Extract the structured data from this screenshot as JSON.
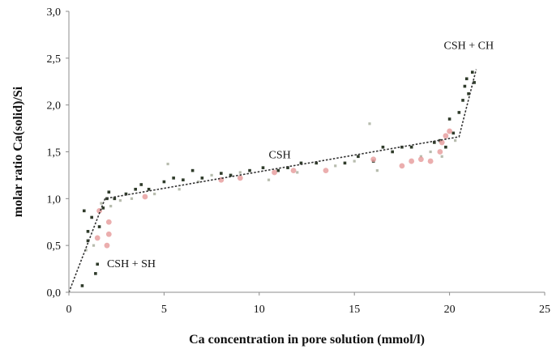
{
  "chart_data": {
    "type": "scatter",
    "title": "",
    "xlabel": "Ca concentration in pore solution (mmol/l)",
    "ylabel": "molar ratio Ca(solid)/Si",
    "xlim": [
      0,
      25
    ],
    "ylim": [
      0,
      3
    ],
    "x_ticks": [
      "0",
      "5",
      "10",
      "15",
      "20",
      "25"
    ],
    "y_ticks": [
      "0,0",
      "0,5",
      "1,0",
      "1,5",
      "2,0",
      "2,5",
      "3,0"
    ],
    "grid": false,
    "annotations": [
      {
        "text": "CSH + SH",
        "x": 2.0,
        "y": 0.27
      },
      {
        "text": "CSH",
        "x": 10.5,
        "y": 1.43
      },
      {
        "text": "CSH + CH",
        "x": 19.7,
        "y": 2.6
      }
    ],
    "fit_line": {
      "x": [
        0.0,
        1.9,
        20.5,
        21.4
      ],
      "y": [
        0.0,
        1.0,
        1.66,
        2.38
      ]
    },
    "series": [
      {
        "marker": "dark-square",
        "color": "#2f3b2a",
        "points": [
          [
            0.7,
            0.07
          ],
          [
            0.8,
            0.87
          ],
          [
            1.0,
            0.55
          ],
          [
            1.0,
            0.65
          ],
          [
            1.2,
            0.8
          ],
          [
            1.4,
            0.2
          ],
          [
            1.5,
            0.3
          ],
          [
            1.6,
            0.7
          ],
          [
            1.8,
            0.9
          ],
          [
            2.0,
            1.0
          ],
          [
            2.1,
            1.07
          ],
          [
            2.4,
            1.0
          ],
          [
            3.0,
            1.05
          ],
          [
            3.5,
            1.1
          ],
          [
            3.8,
            1.15
          ],
          [
            4.2,
            1.1
          ],
          [
            5.0,
            1.18
          ],
          [
            5.5,
            1.22
          ],
          [
            6.0,
            1.2
          ],
          [
            6.5,
            1.3
          ],
          [
            7.0,
            1.22
          ],
          [
            8.0,
            1.27
          ],
          [
            8.5,
            1.25
          ],
          [
            9.5,
            1.3
          ],
          [
            10.2,
            1.33
          ],
          [
            11.0,
            1.3
          ],
          [
            11.5,
            1.33
          ],
          [
            12.2,
            1.38
          ],
          [
            13.0,
            1.38
          ],
          [
            14.5,
            1.38
          ],
          [
            15.2,
            1.45
          ],
          [
            16.0,
            1.4
          ],
          [
            16.5,
            1.55
          ],
          [
            17.0,
            1.5
          ],
          [
            17.5,
            1.55
          ],
          [
            18.0,
            1.55
          ],
          [
            19.2,
            1.6
          ],
          [
            19.5,
            1.62
          ],
          [
            19.8,
            1.55
          ],
          [
            20.0,
            1.85
          ],
          [
            20.2,
            1.7
          ],
          [
            20.5,
            1.92
          ],
          [
            20.7,
            2.05
          ],
          [
            20.8,
            2.2
          ],
          [
            20.9,
            2.28
          ],
          [
            21.0,
            2.12
          ],
          [
            21.2,
            2.35
          ],
          [
            21.3,
            2.24
          ]
        ]
      },
      {
        "marker": "light-square",
        "color": "#b7bcae",
        "points": [
          [
            0.9,
            0.45
          ],
          [
            1.3,
            0.5
          ],
          [
            1.7,
            0.95
          ],
          [
            2.2,
            0.92
          ],
          [
            2.7,
            0.98
          ],
          [
            3.3,
            1.0
          ],
          [
            4.5,
            1.05
          ],
          [
            5.2,
            1.37
          ],
          [
            5.8,
            1.1
          ],
          [
            6.8,
            1.18
          ],
          [
            7.5,
            1.25
          ],
          [
            9.0,
            1.28
          ],
          [
            10.5,
            1.2
          ],
          [
            12.0,
            1.28
          ],
          [
            14.0,
            1.35
          ],
          [
            15.0,
            1.4
          ],
          [
            15.8,
            1.8
          ],
          [
            16.2,
            1.3
          ],
          [
            18.5,
            1.45
          ],
          [
            19.0,
            1.5
          ],
          [
            19.6,
            1.45
          ],
          [
            20.3,
            1.62
          ]
        ]
      },
      {
        "marker": "pink-circle",
        "color": "#e7a0a0",
        "points": [
          [
            1.5,
            0.58
          ],
          [
            1.6,
            0.87
          ],
          [
            2.0,
            0.5
          ],
          [
            2.1,
            0.62
          ],
          [
            2.1,
            0.75
          ],
          [
            4.0,
            1.02
          ],
          [
            8.0,
            1.2
          ],
          [
            9.0,
            1.22
          ],
          [
            10.8,
            1.28
          ],
          [
            11.8,
            1.3
          ],
          [
            13.5,
            1.3
          ],
          [
            16.0,
            1.42
          ],
          [
            17.5,
            1.35
          ],
          [
            18.0,
            1.4
          ],
          [
            18.5,
            1.42
          ],
          [
            19.0,
            1.4
          ],
          [
            19.5,
            1.5
          ],
          [
            19.6,
            1.6
          ],
          [
            19.8,
            1.67
          ],
          [
            20.0,
            1.72
          ]
        ]
      }
    ]
  }
}
